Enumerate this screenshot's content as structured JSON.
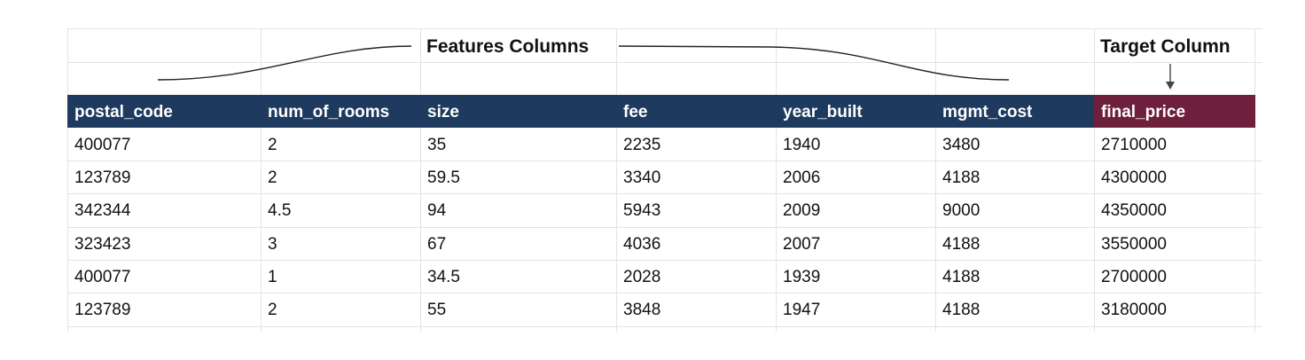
{
  "annotations": {
    "features_label": "Features Columns",
    "target_label": "Target Column"
  },
  "table": {
    "headers": [
      "postal_code",
      "num_of_rooms",
      "size",
      "fee",
      "year_built",
      "mgmt_cost",
      "final_price"
    ],
    "rows": [
      [
        "400077",
        "2",
        "35",
        "2235",
        "1940",
        "3480",
        "2710000"
      ],
      [
        "123789",
        "2",
        "59.5",
        "3340",
        "2006",
        "4188",
        "4300000"
      ],
      [
        "342344",
        "4.5",
        "94",
        "5943",
        "2009",
        "9000",
        "4350000"
      ],
      [
        "323423",
        "3",
        "67",
        "4036",
        "2007",
        "4188",
        "3550000"
      ],
      [
        "400077",
        "1",
        "34.5",
        "2028",
        "1939",
        "4188",
        "2700000"
      ],
      [
        "123789",
        "2",
        "55",
        "3848",
        "1947",
        "4188",
        "3180000"
      ]
    ]
  },
  "colors": {
    "header_bg": "#1e3a5f",
    "target_header_bg": "#6e1f3c"
  }
}
